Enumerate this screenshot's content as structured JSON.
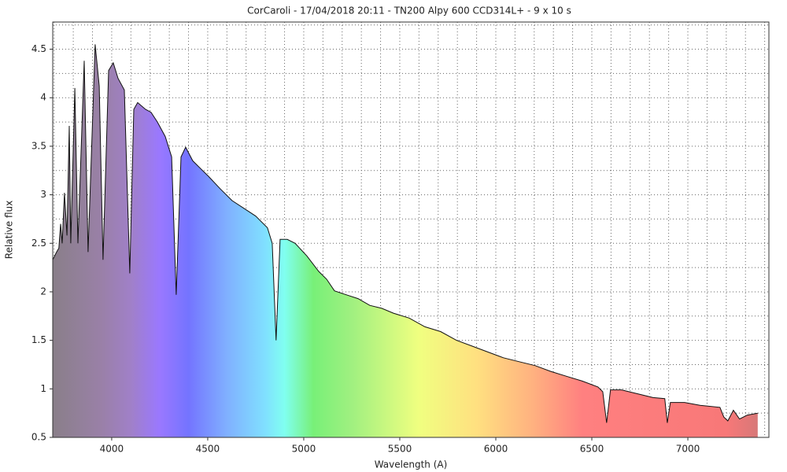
{
  "chart_data": {
    "type": "area",
    "title": "CorCaroli - 17/04/2018 20:11 - TN200 Alpy 600 CCD314L+ - 9 x 10 s",
    "xlabel": "Wavelength (A)",
    "ylabel": "Relative flux",
    "xlim": [
      3693,
      7422
    ],
    "ylim": [
      0.5,
      4.78
    ],
    "xticks": [
      4000,
      4500,
      5000,
      5500,
      6000,
      6500,
      7000
    ],
    "yticks": [
      0.5,
      1,
      1.5,
      2,
      2.5,
      3,
      3.5,
      4,
      4.5
    ],
    "xgrid": [
      3700,
      3800,
      3900,
      4000,
      4100,
      4200,
      4300,
      4400,
      4500,
      4600,
      4700,
      4800,
      4900,
      5000,
      5100,
      5200,
      5300,
      5400,
      5500,
      5600,
      5700,
      5800,
      5900,
      6000,
      6100,
      6200,
      6300,
      6400,
      6500,
      6600,
      6700,
      6800,
      6900,
      7000,
      7100,
      7200,
      7300,
      7400
    ],
    "ygrid": [
      0.75,
      1,
      1.25,
      1.5,
      1.75,
      2,
      2.25,
      2.5,
      2.75,
      3,
      3.25,
      3.5,
      3.75,
      4,
      4.25,
      4.5,
      4.75
    ],
    "line_color": "#111111",
    "gradient_stops": [
      {
        "wavelength": 3700,
        "color": "#8a7f8a"
      },
      {
        "wavelength": 3950,
        "color": "#9a80a8"
      },
      {
        "wavelength": 4100,
        "color": "#a080c8"
      },
      {
        "wavelength": 4250,
        "color": "#9a78ff"
      },
      {
        "wavelength": 4400,
        "color": "#7474ff"
      },
      {
        "wavelength": 4600,
        "color": "#80b0ff"
      },
      {
        "wavelength": 4800,
        "color": "#80e0ff"
      },
      {
        "wavelength": 4900,
        "color": "#80fff0"
      },
      {
        "wavelength": 5050,
        "color": "#78f078"
      },
      {
        "wavelength": 5250,
        "color": "#a0f080"
      },
      {
        "wavelength": 5600,
        "color": "#f0ff80"
      },
      {
        "wavelength": 5900,
        "color": "#ffe080"
      },
      {
        "wavelength": 6200,
        "color": "#ffb080"
      },
      {
        "wavelength": 6450,
        "color": "#ff8080"
      },
      {
        "wavelength": 7200,
        "color": "#f87878"
      },
      {
        "wavelength": 7400,
        "color": "#d07878"
      }
    ],
    "x": [
      3693,
      3713,
      3725,
      3734,
      3742,
      3754,
      3767,
      3779,
      3787,
      3808,
      3824,
      3857,
      3877,
      3914,
      3935,
      3955,
      3984,
      4008,
      4033,
      4066,
      4094,
      4115,
      4135,
      4176,
      4205,
      4238,
      4279,
      4312,
      4336,
      4361,
      4385,
      4422,
      4463,
      4504,
      4566,
      4627,
      4689,
      4750,
      4811,
      4836,
      4856,
      4877,
      4914,
      4955,
      5016,
      5078,
      5119,
      5160,
      5221,
      5283,
      5344,
      5406,
      5467,
      5549,
      5631,
      5713,
      5795,
      5877,
      5958,
      6040,
      6122,
      6204,
      6286,
      6368,
      6450,
      6532,
      6557,
      6577,
      6597,
      6655,
      6737,
      6819,
      6880,
      6893,
      6909,
      6983,
      7064,
      7167,
      7187,
      7208,
      7237,
      7269,
      7310,
      7364
    ],
    "values": [
      2.33,
      2.41,
      2.45,
      2.7,
      2.5,
      3.02,
      2.58,
      3.71,
      2.5,
      4.1,
      2.5,
      4.38,
      2.41,
      4.55,
      4.12,
      2.33,
      4.28,
      4.36,
      4.2,
      4.08,
      2.19,
      3.88,
      3.95,
      3.88,
      3.85,
      3.75,
      3.6,
      3.39,
      1.97,
      3.39,
      3.49,
      3.35,
      3.27,
      3.19,
      3.06,
      2.94,
      2.86,
      2.78,
      2.66,
      2.5,
      1.5,
      2.54,
      2.54,
      2.5,
      2.37,
      2.21,
      2.13,
      2.01,
      1.97,
      1.93,
      1.86,
      1.83,
      1.78,
      1.73,
      1.64,
      1.59,
      1.5,
      1.44,
      1.38,
      1.32,
      1.28,
      1.24,
      1.18,
      1.13,
      1.08,
      1.02,
      0.97,
      0.65,
      0.99,
      0.99,
      0.95,
      0.91,
      0.9,
      0.65,
      0.86,
      0.86,
      0.83,
      0.81,
      0.71,
      0.67,
      0.78,
      0.69,
      0.73,
      0.75
    ]
  }
}
